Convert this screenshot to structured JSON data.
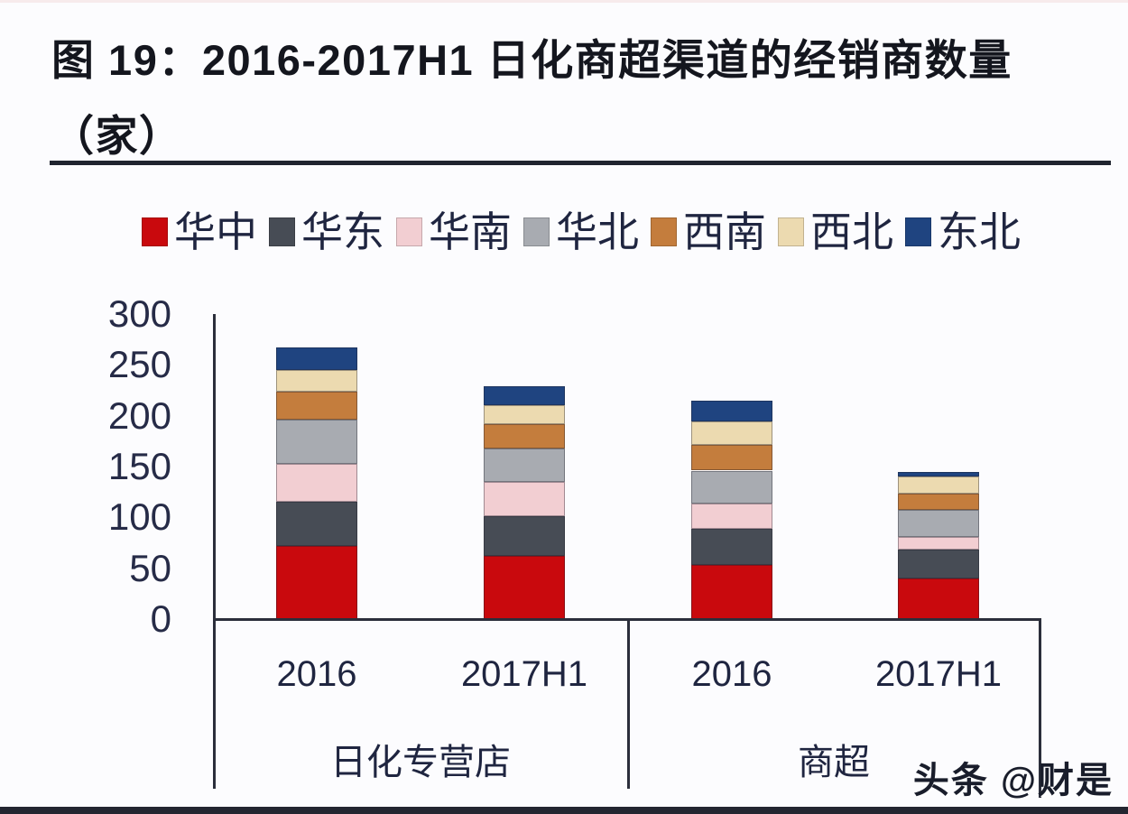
{
  "header": {
    "title_line1": "图 19：2016-2017H1 日化商超渠道的经销商数量",
    "title_line2": "（家）"
  },
  "watermark": {
    "text": "头条 @财是"
  },
  "chart_data": {
    "type": "bar",
    "stacked": true,
    "title": "图 19：2016-2017H1 日化商超渠道的经销商数量（家）",
    "xlabel": "",
    "ylabel": "",
    "ylim": [
      0,
      300
    ],
    "y_ticks": [
      300,
      250,
      200,
      150,
      100,
      50,
      0
    ],
    "grid": false,
    "legend_position": "top",
    "groups": [
      {
        "label": "日化专营店",
        "categories": [
          "2016",
          "2017H1"
        ]
      },
      {
        "label": "商超",
        "categories": [
          "2016",
          "2017H1"
        ]
      }
    ],
    "series": [
      {
        "name": "华中",
        "color": "#c9090d",
        "values": [
          72,
          62,
          53,
          40
        ]
      },
      {
        "name": "华东",
        "color": "#474c55",
        "values": [
          43,
          39,
          36,
          28
        ]
      },
      {
        "name": "华南",
        "color": "#f2ced2",
        "values": [
          38,
          34,
          25,
          13
        ]
      },
      {
        "name": "华北",
        "color": "#a8abb1",
        "values": [
          43,
          33,
          32,
          26
        ]
      },
      {
        "name": "西南",
        "color": "#c47d3d",
        "values": [
          28,
          24,
          25,
          16
        ]
      },
      {
        "name": "西北",
        "color": "#ecdab0",
        "values": [
          21,
          18,
          23,
          17
        ]
      },
      {
        "name": "东北",
        "color": "#1f4480",
        "values": [
          22,
          19,
          21,
          5
        ]
      }
    ]
  }
}
